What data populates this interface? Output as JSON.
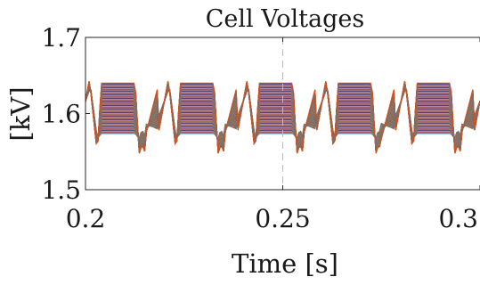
{
  "chart_data": {
    "type": "line",
    "title": "Cell Voltages",
    "xlabel": "Time [s]",
    "ylabel": "[kV]",
    "xlim": [
      0.2,
      0.3
    ],
    "ylim": [
      1.5,
      1.7
    ],
    "xticks": [
      0.2,
      0.25,
      0.3
    ],
    "xtick_labels": [
      "0.2",
      "0.25",
      "0.3"
    ],
    "yticks": [
      1.5,
      1.6,
      1.7
    ],
    "ytick_labels": [
      "1.5",
      "1.6",
      "1.7"
    ],
    "grid": false,
    "vertical_reference_line": 0.25,
    "series_count": 100,
    "period_s": 0.02,
    "voltage_band_kv": [
      1.54,
      1.645
    ],
    "representative_series": {
      "x": [
        0.2,
        0.204,
        0.207,
        0.212,
        0.216,
        0.218,
        0.221,
        0.223,
        0.225,
        0.228,
        0.232,
        0.236,
        0.238,
        0.241,
        0.243,
        0.245,
        0.248,
        0.252,
        0.256,
        0.258,
        0.261,
        0.263,
        0.265,
        0.268,
        0.272,
        0.276,
        0.278,
        0.281,
        0.283,
        0.285,
        0.288,
        0.292,
        0.296,
        0.298,
        0.3
      ],
      "y": [
        1.63,
        1.63,
        1.56,
        1.59,
        1.6,
        1.58,
        1.6,
        1.64,
        1.56,
        1.62,
        1.63,
        1.63,
        1.56,
        1.6,
        1.64,
        1.56,
        1.62,
        1.63,
        1.63,
        1.56,
        1.6,
        1.64,
        1.56,
        1.62,
        1.63,
        1.63,
        1.56,
        1.6,
        1.64,
        1.56,
        1.62,
        1.63,
        1.63,
        1.56,
        1.6
      ]
    },
    "colors": [
      "#0072BD",
      "#D95319",
      "#EDB120",
      "#7E2F8E",
      "#77AC30",
      "#4DBEEE",
      "#A2142F"
    ]
  }
}
